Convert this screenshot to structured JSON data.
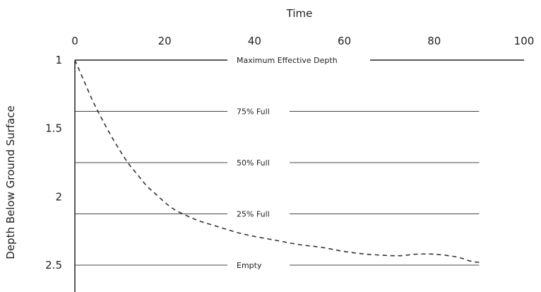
{
  "chart_data": {
    "type": "line",
    "xlabel": "Time",
    "ylabel": "Depth Below Ground Surface",
    "x_axis_position": "top",
    "y_axis_inverted": true,
    "xlim": [
      0,
      100
    ],
    "ylim": [
      1,
      2.6
    ],
    "x_ticks": [
      "0",
      "20",
      "40",
      "60",
      "80",
      "100"
    ],
    "y_ticks": [
      "1",
      "1.5",
      "2",
      "2.5"
    ],
    "grid": false,
    "line_style": "dashed",
    "line_color": "#333333",
    "reference_lines": [
      {
        "label": "Maximum Effective Depth",
        "y": 1.0,
        "x_end": 100
      },
      {
        "label": "75% Full",
        "y": 1.375,
        "x_end": 90
      },
      {
        "label": "50% Full",
        "y": 1.75,
        "x_end": 90
      },
      {
        "label": "25% Full",
        "y": 2.125,
        "x_end": 90
      },
      {
        "label": "Empty",
        "y": 2.5,
        "x_end": 90
      }
    ],
    "series": [
      {
        "x": [
          0,
          2,
          4,
          6,
          8,
          10,
          12,
          14,
          16,
          18,
          20,
          22,
          25,
          28,
          32,
          36,
          40,
          45,
          50,
          55,
          60,
          65,
          70,
          73,
          76,
          80,
          85,
          88,
          90
        ],
        "y": [
          1.0,
          1.15,
          1.3,
          1.43,
          1.55,
          1.66,
          1.76,
          1.84,
          1.92,
          1.98,
          2.04,
          2.09,
          2.14,
          2.18,
          2.22,
          2.26,
          2.29,
          2.32,
          2.35,
          2.37,
          2.4,
          2.42,
          2.43,
          2.43,
          2.42,
          2.42,
          2.44,
          2.47,
          2.48
        ]
      }
    ]
  }
}
